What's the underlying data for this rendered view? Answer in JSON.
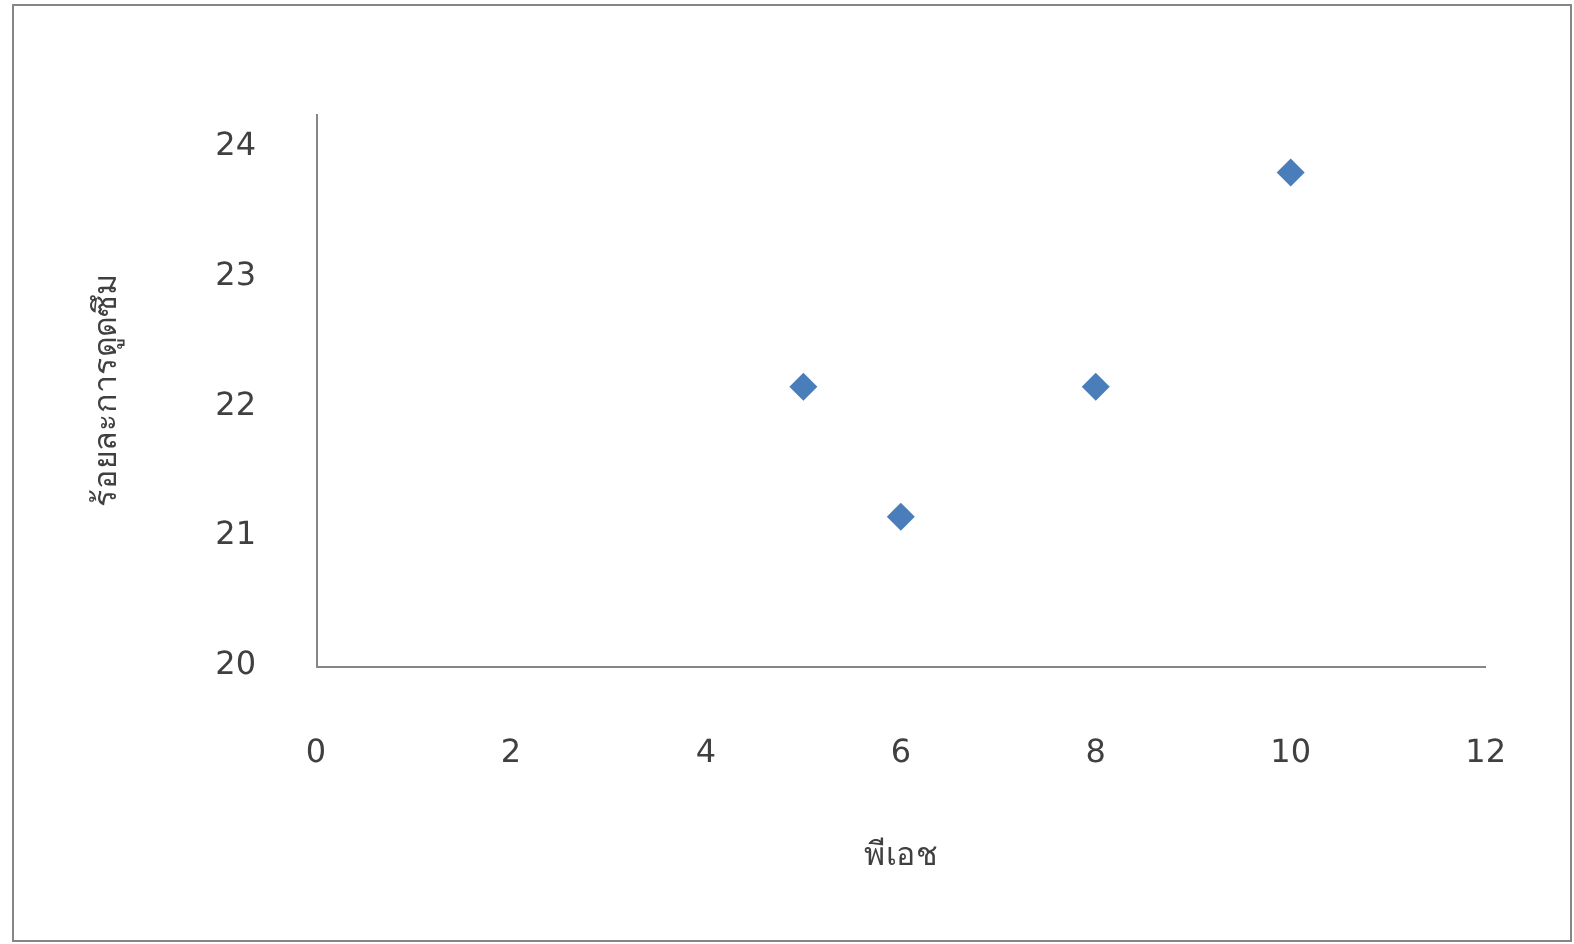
{
  "chart_data": {
    "type": "scatter",
    "xlabel": "พีเอช",
    "ylabel": "ร้อยละการดูดซึม",
    "x": [
      5,
      6,
      8,
      10
    ],
    "values": [
      22.15,
      21.15,
      22.15,
      23.8
    ],
    "color": "#4a7ebb",
    "xlim": [
      0,
      12
    ],
    "xticks": [
      0,
      2,
      4,
      6,
      8,
      10,
      12
    ],
    "ylim": [
      20,
      24.25
    ],
    "yticks": [
      20,
      21,
      22,
      23,
      24
    ],
    "marker": "diamond"
  }
}
